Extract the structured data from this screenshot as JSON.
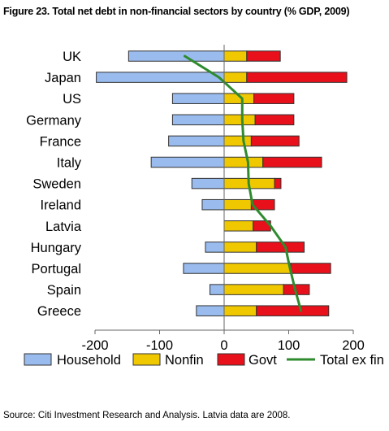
{
  "title": "Figure 23. Total net debt in non-financial sectors by country (% GDP, 2009)",
  "source": "Source: Citi Investment Research and Analysis. Latvia data are 2008.",
  "colors": {
    "household": "#99bbee",
    "nonfin": "#f0c800",
    "govt": "#e8101a",
    "total": "#2e8b2e",
    "axis": "#666666",
    "bar_stroke": "#333333"
  },
  "chart_data": {
    "type": "bar",
    "orientation": "horizontal",
    "stacked": true,
    "categories": [
      "UK",
      "Japan",
      "US",
      "Germany",
      "France",
      "Italy",
      "Sweden",
      "Ireland",
      "Latvia",
      "Hungary",
      "Portugal",
      "Spain",
      "Greece"
    ],
    "series": [
      {
        "name": "Household",
        "color": "#99bbee",
        "values": [
          -148,
          -198,
          -80,
          -80,
          -86,
          -113,
          -50,
          -34,
          0,
          -29,
          -63,
          -22,
          -43
        ]
      },
      {
        "name": "Nonfin",
        "color": "#f0c800",
        "values": [
          35,
          35,
          46,
          48,
          42,
          60,
          78,
          42,
          45,
          50,
          103,
          92,
          50
        ]
      },
      {
        "name": "Govt",
        "color": "#e8101a",
        "values": [
          52,
          155,
          62,
          60,
          74,
          91,
          10,
          36,
          27,
          74,
          62,
          40,
          112
        ]
      },
      {
        "name": "Total ex fin",
        "type": "line",
        "color": "#2e8b2e",
        "values": [
          -61,
          -8,
          28,
          28,
          30,
          37,
          38,
          44,
          72,
          95,
          102,
          110,
          119
        ]
      }
    ],
    "xlim": [
      -200,
      200
    ],
    "xticks": [
      -200,
      -100,
      0,
      100,
      200
    ],
    "xtick_labels": [
      "-200",
      "-100",
      "0",
      "100",
      "200"
    ],
    "legend_position": "bottom",
    "grid": false
  }
}
